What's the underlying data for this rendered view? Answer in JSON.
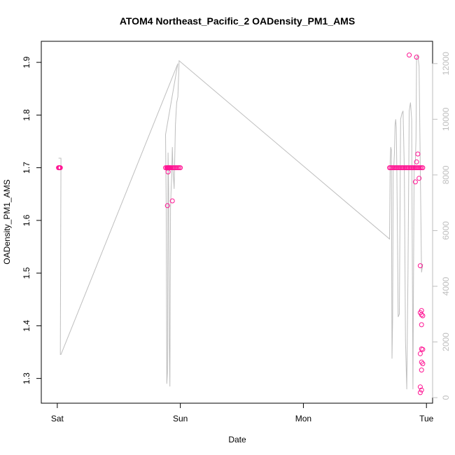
{
  "chart_data": {
    "type": "scatter",
    "title": "ATOM4 Northeast_Pacific_2 OADensity_PM1_AMS",
    "xlabel": "Date",
    "ylabel": "OADensity_PM1_AMS",
    "x_ticks": [
      "Sat",
      "Sun",
      "Mon",
      "Tue"
    ],
    "x_tick_values": [
      0,
      1,
      2,
      3
    ],
    "xlim": [
      -0.13,
      3.05
    ],
    "ylim": [
      1.253,
      1.94
    ],
    "y_ticks": [
      1.3,
      1.4,
      1.5,
      1.6,
      1.7,
      1.8,
      1.9
    ],
    "y2lim": [
      -200,
      12800
    ],
    "y2_ticks": [
      0,
      2000,
      4000,
      6000,
      8000,
      10000,
      12000
    ],
    "point_color": "#ff1493",
    "line_color": "#bebebe",
    "series": [
      {
        "kind": "points",
        "axis": "left",
        "x": [
          0.01,
          0.015,
          0.02,
          0.025,
          0.88,
          0.89,
          0.895,
          0.9,
          0.905,
          0.91,
          0.915,
          0.92,
          0.93,
          0.94,
          0.95,
          0.96,
          0.97,
          0.98,
          0.99,
          1.0,
          0.895,
          0.9,
          0.935,
          2.7,
          2.71,
          2.72,
          2.73,
          2.74,
          2.75,
          2.76,
          2.77,
          2.78,
          2.79,
          2.8,
          2.81,
          2.82,
          2.83,
          2.84,
          2.85,
          2.86,
          2.87,
          2.88,
          2.89,
          2.9,
          2.91,
          2.92,
          2.93,
          2.94,
          2.95,
          2.96,
          2.97,
          2.86,
          2.92,
          2.91,
          2.92,
          2.93,
          2.94,
          2.95,
          2.96,
          2.95,
          2.96,
          2.97,
          2.96,
          2.97,
          2.96,
          2.95,
          2.96,
          2.97,
          2.96,
          2.95,
          2.96,
          2.95
        ],
        "y": [
          1.7,
          1.7,
          1.7,
          1.7,
          1.7,
          1.7,
          1.7,
          1.7,
          1.7,
          1.7,
          1.7,
          1.7,
          1.7,
          1.7,
          1.7,
          1.7,
          1.7,
          1.7,
          1.7,
          1.7,
          1.628,
          1.692,
          1.637,
          1.7,
          1.7,
          1.7,
          1.7,
          1.7,
          1.7,
          1.7,
          1.7,
          1.7,
          1.7,
          1.7,
          1.7,
          1.7,
          1.7,
          1.7,
          1.7,
          1.7,
          1.7,
          1.7,
          1.7,
          1.7,
          1.7,
          1.7,
          1.7,
          1.7,
          1.7,
          1.7,
          1.7,
          1.914,
          1.91,
          1.673,
          1.711,
          1.726,
          1.68,
          1.514,
          1.429,
          1.425,
          1.421,
          1.419,
          1.402,
          1.355,
          1.356,
          1.347,
          1.331,
          1.328,
          1.316,
          1.284,
          1.278,
          1.273
        ]
      },
      {
        "kind": "line",
        "axis": "right",
        "x": [
          0.01,
          0.03,
          0.025,
          0.03,
          0.98,
          0.88,
          0.885,
          0.89,
          0.895,
          0.9,
          0.905,
          0.91,
          0.915,
          0.92,
          0.925,
          0.93,
          0.935,
          0.94,
          0.95,
          0.96,
          0.97,
          0.98,
          0.99,
          0.99,
          2.7,
          2.705,
          2.71,
          2.715,
          2.72,
          2.725,
          2.73,
          2.735,
          2.74,
          2.745,
          2.75,
          2.755,
          2.76,
          2.77,
          2.78,
          2.79,
          2.8,
          2.81,
          2.82,
          2.83,
          2.84,
          2.85,
          2.86,
          2.87,
          2.88,
          2.89,
          2.9,
          2.91,
          2.915,
          2.92,
          2.93,
          2.94,
          2.95,
          2.96,
          2.97
        ],
        "y": [
          8600,
          8600,
          1550,
          1550,
          12000,
          9450,
          7000,
          500,
          900,
          8800,
          7500,
          2000,
          400,
          6800,
          7500,
          8000,
          9000,
          8200,
          7500,
          9800,
          10600,
          10800,
          12100,
          12100,
          5700,
          8500,
          9000,
          8900,
          1400,
          2800,
          8200,
          8300,
          8800,
          9800,
          10000,
          9700,
          8000,
          2900,
          3000,
          10000,
          10200,
          10300,
          8200,
          2000,
          300,
          4400,
          10300,
          10600,
          10000,
          300,
          8300,
          8500,
          9300,
          12200,
          12300,
          11900,
          8300,
          4500,
          4800
        ]
      }
    ]
  }
}
